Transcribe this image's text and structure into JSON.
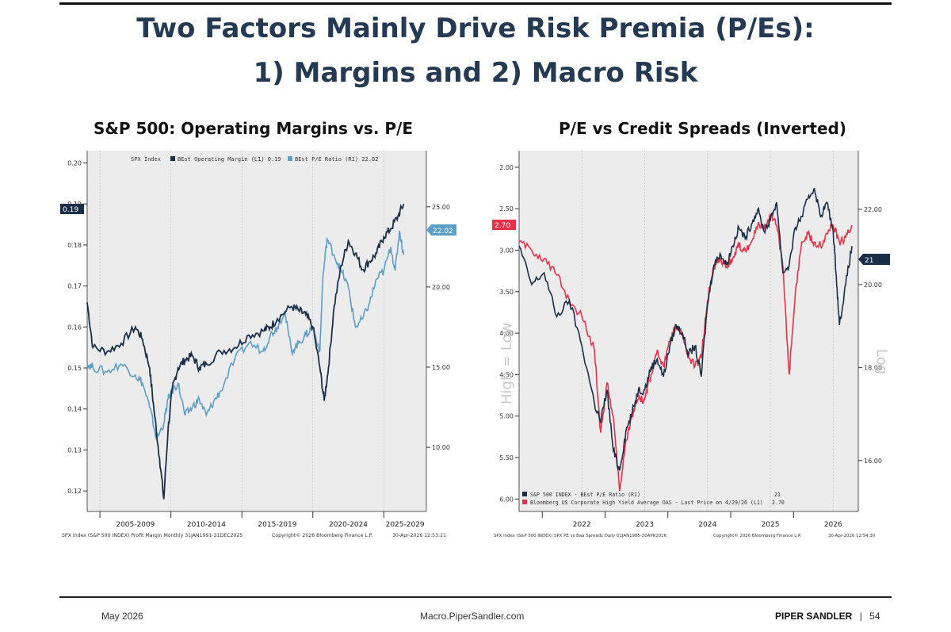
{
  "slide": {
    "title_line1": "Two Factors Mainly Drive Risk Premia (P/Es):",
    "title_line2": "1) Margins and 2) Macro Risk",
    "footer_date": "May 2026",
    "footer_url": "Macro.PiperSandler.com",
    "footer_brand": "PIPER SANDLER",
    "footer_sep": "|",
    "page_number": "54"
  },
  "colors": {
    "title": "#243a52",
    "dark_series": "#1a2f47",
    "light_series": "#5d9fc8",
    "red_series": "#e8324a",
    "plot_bg": "#ececec"
  },
  "chart_data": [
    {
      "type": "line",
      "title": "S&P 500: Operating Margins vs. P/E",
      "legend": {
        "prefix": "SPX Index",
        "position": "top"
      },
      "series": [
        {
          "name": "BEst Operating Margin (L1) 0.19",
          "axis": "left",
          "color": "#1a2f47",
          "x": [
            2003.6,
            2004,
            2005,
            2006,
            2007,
            2007.5,
            2008,
            2008.3,
            2008.7,
            2009,
            2009.3,
            2009.6,
            2010,
            2010.5,
            2011,
            2011.5,
            2012,
            2013,
            2014,
            2015,
            2016,
            2016.5,
            2017,
            2018,
            2018.5,
            2019,
            2019.5,
            2020,
            2020.3,
            2020.6,
            2021,
            2021.5,
            2022,
            2022.5,
            2023,
            2023.5,
            2024,
            2024.5,
            2025,
            2025.5,
            2025.9
          ],
          "y": [
            0.166,
            0.155,
            0.154,
            0.156,
            0.16,
            0.157,
            0.15,
            0.14,
            0.128,
            0.118,
            0.135,
            0.145,
            0.15,
            0.152,
            0.153,
            0.15,
            0.151,
            0.154,
            0.155,
            0.158,
            0.159,
            0.16,
            0.162,
            0.165,
            0.164,
            0.163,
            0.16,
            0.15,
            0.142,
            0.15,
            0.165,
            0.175,
            0.181,
            0.178,
            0.174,
            0.176,
            0.178,
            0.182,
            0.184,
            0.187,
            0.19
          ]
        },
        {
          "name": "BEst P/E Ratio (R1) 22.02",
          "axis": "right",
          "color": "#5d9fc8",
          "x": [
            2003.6,
            2004,
            2005,
            2006,
            2007,
            2007.5,
            2008,
            2008.5,
            2009,
            2009.3,
            2009.6,
            2010,
            2010.5,
            2011,
            2011.5,
            2012,
            2012.5,
            2013,
            2014,
            2015,
            2016,
            2016.5,
            2017,
            2017.5,
            2018,
            2018.5,
            2019,
            2019.5,
            2020,
            2020.2,
            2020.5,
            2021,
            2021.5,
            2022,
            2022.5,
            2023,
            2023.5,
            2024,
            2024.5,
            2025,
            2025.3,
            2025.6,
            2025.9
          ],
          "y": [
            15.2,
            15.0,
            14.7,
            15.2,
            14.5,
            14.0,
            12.5,
            10.5,
            11.5,
            13.0,
            13.5,
            14.0,
            12.0,
            12.5,
            13.0,
            12.0,
            12.8,
            13.5,
            15.5,
            16.5,
            16.0,
            17.0,
            17.5,
            18.5,
            16.0,
            16.5,
            17.0,
            17.5,
            16.0,
            20.5,
            23.0,
            22.0,
            21.0,
            20.0,
            17.5,
            18.0,
            19.0,
            20.5,
            21.0,
            22.5,
            21.0,
            23.5,
            22.0
          ]
        }
      ],
      "left_axis": {
        "ticks": [
          "0.20",
          "0.19",
          "0.18",
          "0.17",
          "0.16",
          "0.15",
          "0.14",
          "0.13",
          "0.12"
        ],
        "ylim": [
          0.115,
          0.203
        ],
        "current_value_label": "0.19"
      },
      "right_axis": {
        "ticks": [
          "25.00",
          "20.00",
          "15.00",
          "10.00"
        ],
        "ylim": [
          6.0,
          28.5
        ],
        "current_value_label": "22.02"
      },
      "x_ticks": [
        "2005-2009",
        "2010-2014",
        "2015-2019",
        "2020-2024",
        "2025-2029"
      ],
      "xlim": [
        2003.6,
        2027.5
      ],
      "footnote_left": "SPX Index (S&P 500 INDEX) Profit Margin Monthly 31JAN1991-31DEC2025",
      "footnote_mid": "Copyright© 2026 Bloomberg Finance L.P.",
      "footnote_right": "30-Apr-2026 12:53:21"
    },
    {
      "type": "line",
      "title": "P/E vs Credit Spreads (Inverted)",
      "legend": {
        "position": "bottom"
      },
      "series": [
        {
          "name": "S&P 500 INDEX - BEst P/E Ratio (R1)",
          "value": "21",
          "axis": "right",
          "color": "#1a2f47",
          "x": [
            2021.0,
            2021.2,
            2021.4,
            2021.6,
            2021.8,
            2022.0,
            2022.2,
            2022.3,
            2022.4,
            2022.5,
            2022.6,
            2022.7,
            2022.8,
            2022.9,
            2023.0,
            2023.1,
            2023.2,
            2023.3,
            2023.4,
            2023.5,
            2023.6,
            2023.7,
            2023.8,
            2023.9,
            2024.0,
            2024.1,
            2024.2,
            2024.3,
            2024.4,
            2024.5,
            2024.6,
            2024.7,
            2024.8,
            2024.9,
            2025.0,
            2025.1,
            2025.2,
            2025.3,
            2025.4,
            2025.5,
            2025.6,
            2025.7,
            2025.8,
            2025.9,
            2026.0,
            2026.05,
            2026.1,
            2026.2,
            2026.3
          ],
          "y": [
            21.0,
            20.0,
            20.3,
            19.2,
            19.6,
            18.5,
            17.2,
            16.8,
            17.5,
            16.2,
            15.8,
            16.6,
            17.0,
            17.5,
            17.5,
            18.0,
            18.2,
            17.8,
            18.5,
            19.0,
            18.8,
            18.3,
            18.5,
            17.8,
            19.5,
            20.5,
            20.8,
            20.5,
            21.0,
            21.5,
            21.2,
            21.6,
            22.0,
            21.4,
            21.7,
            22.2,
            20.3,
            20.5,
            21.5,
            21.8,
            22.3,
            22.6,
            21.8,
            22.2,
            21.4,
            20.2,
            19.0,
            20.0,
            21.0
          ]
        },
        {
          "name": "Bloomberg US Corporate High Yield Average OAS - Last Price on 4/29/26 (L1)",
          "value": "2.70",
          "axis": "left",
          "color": "#e8324a",
          "x": [
            2021.0,
            2021.2,
            2021.4,
            2021.6,
            2021.8,
            2022.0,
            2022.2,
            2022.3,
            2022.4,
            2022.5,
            2022.6,
            2022.7,
            2022.8,
            2022.9,
            2023.0,
            2023.1,
            2023.2,
            2023.3,
            2023.4,
            2023.5,
            2023.6,
            2023.7,
            2023.8,
            2023.9,
            2024.0,
            2024.1,
            2024.2,
            2024.3,
            2024.4,
            2024.5,
            2024.6,
            2024.7,
            2024.8,
            2024.9,
            2025.0,
            2025.1,
            2025.2,
            2025.3,
            2025.4,
            2025.5,
            2025.6,
            2025.7,
            2025.8,
            2025.9,
            2026.0,
            2026.1,
            2026.2,
            2026.3
          ],
          "y": [
            2.9,
            3.0,
            3.1,
            3.3,
            3.6,
            3.8,
            4.2,
            5.2,
            4.6,
            5.0,
            5.9,
            5.3,
            5.0,
            4.8,
            4.8,
            4.5,
            4.2,
            4.4,
            4.1,
            3.9,
            4.0,
            4.3,
            4.4,
            4.3,
            3.6,
            3.2,
            3.1,
            3.2,
            3.1,
            2.95,
            3.0,
            2.9,
            2.7,
            2.75,
            2.6,
            2.7,
            3.2,
            4.5,
            3.5,
            2.9,
            2.8,
            2.9,
            2.95,
            2.8,
            2.7,
            2.9,
            2.85,
            2.7
          ]
        }
      ],
      "left_axis": {
        "ticks": [
          "2.00",
          "2.50",
          "3.00",
          "3.50",
          "4.00",
          "4.50",
          "5.00",
          "5.50",
          "6.00"
        ],
        "ylim": [
          1.8,
          6.15
        ],
        "inverted": true,
        "current_value_label": "2.70",
        "axis_title": "High = Low"
      },
      "right_axis": {
        "ticks": [
          "22.00",
          "20.00",
          "18.00",
          "16.00"
        ],
        "ylim": [
          15.0,
          23.7
        ],
        "scale": "log",
        "current_value_label": "21",
        "axis_title": "Log"
      },
      "x_ticks": [
        "2022",
        "2023",
        "2024",
        "2025",
        "2026"
      ],
      "xlim": [
        2021.0,
        2026.4
      ],
      "footnote_left": "SPX Index (S&P 500 INDEX) SPX PE vs Baa Spreads Daily 01JAN1985-30APR2026",
      "footnote_mid": "Copyright© 2026 Bloomberg Finance L.P.",
      "footnote_right": "30-Apr-2026 12:54:30"
    }
  ]
}
